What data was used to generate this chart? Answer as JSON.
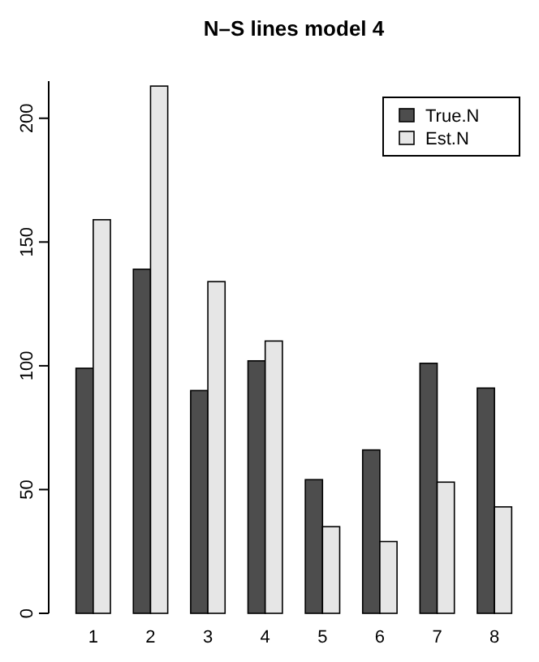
{
  "chart_data": {
    "type": "bar",
    "title": "N–S lines model 4",
    "categories": [
      "1",
      "2",
      "3",
      "4",
      "5",
      "6",
      "7",
      "8"
    ],
    "series": [
      {
        "name": "True.N",
        "color": "#4d4d4d",
        "values": [
          99,
          139,
          90,
          102,
          54,
          66,
          101,
          91
        ]
      },
      {
        "name": "Est.N",
        "color": "#e6e6e6",
        "values": [
          159,
          213,
          134,
          110,
          35,
          29,
          53,
          43
        ]
      }
    ],
    "ylim": [
      0,
      215
    ],
    "yticks": [
      0,
      50,
      100,
      150,
      200
    ],
    "legend": "top right",
    "grid": false
  }
}
